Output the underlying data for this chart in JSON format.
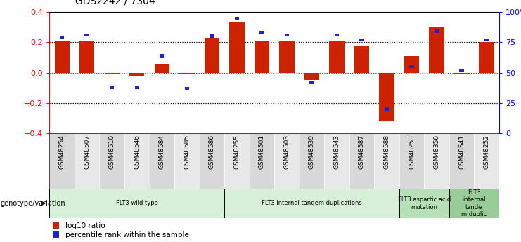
{
  "title": "GDS2242 / 7304",
  "samples": [
    "GSM48254",
    "GSM48507",
    "GSM48510",
    "GSM48546",
    "GSM48584",
    "GSM48585",
    "GSM48586",
    "GSM48255",
    "GSM48501",
    "GSM48503",
    "GSM48539",
    "GSM48543",
    "GSM48587",
    "GSM48588",
    "GSM48253",
    "GSM48350",
    "GSM48541",
    "GSM48252"
  ],
  "log10_ratio": [
    0.21,
    0.21,
    -0.01,
    -0.02,
    0.06,
    -0.01,
    0.23,
    0.33,
    0.21,
    0.21,
    -0.05,
    0.21,
    0.18,
    -0.32,
    0.11,
    0.3,
    -0.01,
    0.2
  ],
  "percentile_rank": [
    79,
    81,
    38,
    38,
    64,
    37,
    80,
    95,
    83,
    81,
    42,
    81,
    77,
    20,
    55,
    84,
    52,
    77
  ],
  "ylim_left": [
    -0.4,
    0.4
  ],
  "ylim_right": [
    0,
    100
  ],
  "yticks_left": [
    -0.4,
    -0.2,
    0.0,
    0.2,
    0.4
  ],
  "yticks_right": [
    0,
    25,
    50,
    75,
    100
  ],
  "ytick_labels_right": [
    "0",
    "25",
    "50",
    "75",
    "100%"
  ],
  "dotted_lines": [
    0.2,
    0.0,
    -0.2
  ],
  "bar_color": "#cc2200",
  "dot_color": "#2222cc",
  "groups": [
    {
      "label": "FLT3 wild type",
      "start": 0,
      "end": 6,
      "color": "#d8f0d8"
    },
    {
      "label": "FLT3 internal tandem duplications",
      "start": 7,
      "end": 13,
      "color": "#d8f0d8"
    },
    {
      "label": "FLT3 aspartic acid\nmutation",
      "start": 14,
      "end": 15,
      "color": "#b8e0b8"
    },
    {
      "label": "FLT3\ninternal\ntande\nm duplic",
      "start": 16,
      "end": 17,
      "color": "#98cc98"
    }
  ],
  "genotype_label": "genotype/variation",
  "legend_bar_label": "log10 ratio",
  "legend_dot_label": "percentile rank within the sample",
  "fig_width": 7.41,
  "fig_height": 3.45,
  "dpi": 100
}
